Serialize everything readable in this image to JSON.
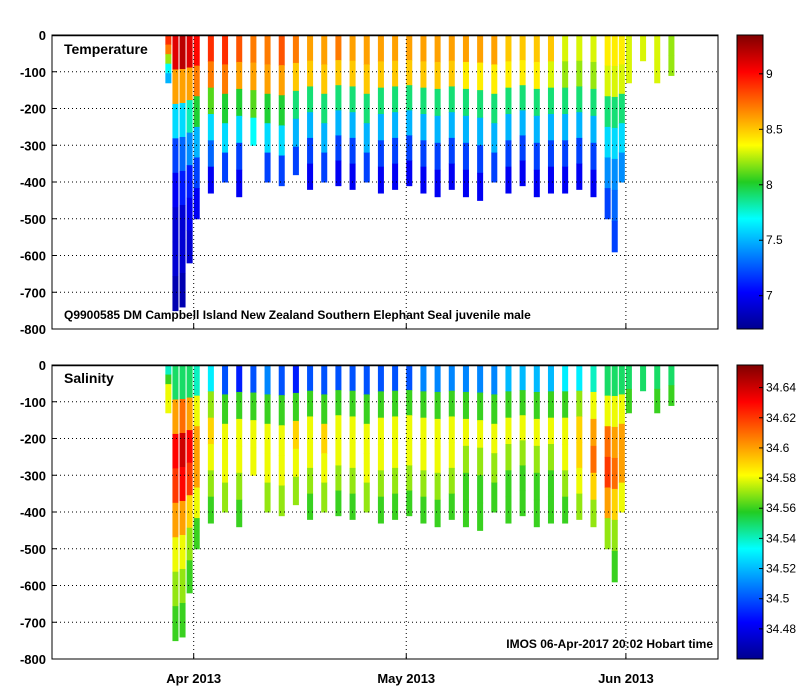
{
  "chart_data": [
    {
      "type": "heatmap",
      "title": "Temperature",
      "caption": "Q9900585 DM Campbell Island New Zealand Southern Elephant Seal juvenile male",
      "ylim": [
        -800,
        0
      ],
      "y_ticks": [
        0,
        -100,
        -200,
        -300,
        -400,
        -500,
        -600,
        -700,
        -800
      ],
      "x_ticks": [
        "Apr 2013",
        "May 2013",
        "Jun 2013"
      ],
      "colorbar": {
        "range": [
          6.7,
          9.35
        ],
        "ticks": [
          7,
          7.5,
          8,
          8.5,
          9
        ]
      },
      "profiles": [
        {
          "date": "2013-03-28",
          "bottom": -130,
          "values": [
            8.9,
            8.7,
            8.2,
            7.7,
            7.5
          ]
        },
        {
          "date": "2013-03-29",
          "bottom": -750,
          "values": [
            9.1,
            8.6,
            7.6,
            7.2,
            7.0,
            6.9,
            6.9,
            6.8
          ]
        },
        {
          "date": "2013-03-30",
          "bottom": -740,
          "values": [
            9.2,
            8.6,
            7.6,
            7.3,
            7.1,
            6.9,
            6.9,
            6.8
          ]
        },
        {
          "date": "2013-03-31",
          "bottom": -620,
          "values": [
            9.1,
            8.6,
            7.8,
            7.4,
            7.1,
            7.0,
            6.9
          ]
        },
        {
          "date": "2013-04-01",
          "bottom": -500,
          "values": [
            9.0,
            8.7,
            8.0,
            7.5,
            7.2,
            7.0
          ]
        },
        {
          "date": "2013-04-03",
          "bottom": -430,
          "values": [
            8.9,
            8.7,
            8.1,
            7.6,
            7.3,
            7.0
          ]
        },
        {
          "date": "2013-04-05",
          "bottom": -400,
          "values": [
            8.9,
            8.7,
            8.0,
            7.6,
            7.2
          ]
        },
        {
          "date": "2013-04-07",
          "bottom": -440,
          "values": [
            8.8,
            8.6,
            8.0,
            7.6,
            7.2,
            7.0
          ]
        },
        {
          "date": "2013-04-09",
          "bottom": -300,
          "values": [
            8.7,
            8.6,
            8.1,
            7.7
          ]
        },
        {
          "date": "2013-04-11",
          "bottom": -400,
          "values": [
            8.7,
            8.6,
            8.0,
            7.6,
            7.2
          ]
        },
        {
          "date": "2013-04-13",
          "bottom": -410,
          "values": [
            8.8,
            8.6,
            8.0,
            7.6,
            7.2
          ]
        },
        {
          "date": "2013-04-15",
          "bottom": -380,
          "values": [
            8.7,
            8.5,
            7.9,
            7.5,
            7.2
          ]
        },
        {
          "date": "2013-04-17",
          "bottom": -420,
          "values": [
            8.6,
            8.5,
            7.9,
            7.5,
            7.2,
            7.0
          ]
        },
        {
          "date": "2013-04-19",
          "bottom": -400,
          "values": [
            8.6,
            8.5,
            7.9,
            7.5,
            7.2
          ]
        },
        {
          "date": "2013-04-21",
          "bottom": -410,
          "values": [
            8.7,
            8.5,
            7.9,
            7.5,
            7.2,
            7.0
          ]
        },
        {
          "date": "2013-04-23",
          "bottom": -420,
          "values": [
            8.6,
            8.5,
            7.9,
            7.5,
            7.2,
            7.0
          ]
        },
        {
          "date": "2013-04-25",
          "bottom": -400,
          "values": [
            8.6,
            8.5,
            7.9,
            7.5,
            7.2
          ]
        },
        {
          "date": "2013-04-27",
          "bottom": -430,
          "values": [
            8.6,
            8.5,
            7.9,
            7.5,
            7.2,
            7.0
          ]
        },
        {
          "date": "2013-04-29",
          "bottom": -420,
          "values": [
            8.6,
            8.5,
            7.9,
            7.5,
            7.2,
            7.0
          ]
        },
        {
          "date": "2013-05-01",
          "bottom": -410,
          "values": [
            8.6,
            8.5,
            7.9,
            7.5,
            7.2,
            7.0
          ]
        },
        {
          "date": "2013-05-03",
          "bottom": -430,
          "values": [
            8.6,
            8.5,
            7.9,
            7.5,
            7.2,
            7.0
          ]
        },
        {
          "date": "2013-05-05",
          "bottom": -440,
          "values": [
            8.6,
            8.5,
            7.9,
            7.5,
            7.2,
            7.0
          ]
        },
        {
          "date": "2013-05-07",
          "bottom": -420,
          "values": [
            8.6,
            8.5,
            7.9,
            7.5,
            7.2,
            7.0
          ]
        },
        {
          "date": "2013-05-09",
          "bottom": -440,
          "values": [
            8.6,
            8.4,
            7.9,
            7.5,
            7.2,
            7.0
          ]
        },
        {
          "date": "2013-05-11",
          "bottom": -450,
          "values": [
            8.6,
            8.4,
            7.9,
            7.5,
            7.2,
            7.0
          ]
        },
        {
          "date": "2013-05-13",
          "bottom": -400,
          "values": [
            8.6,
            8.4,
            7.9,
            7.5,
            7.2
          ]
        },
        {
          "date": "2013-05-15",
          "bottom": -430,
          "values": [
            8.5,
            8.4,
            7.9,
            7.5,
            7.2,
            7.0
          ]
        },
        {
          "date": "2013-05-17",
          "bottom": -410,
          "values": [
            8.5,
            8.4,
            7.9,
            7.5,
            7.2,
            7.0
          ]
        },
        {
          "date": "2013-05-19",
          "bottom": -440,
          "values": [
            8.5,
            8.4,
            7.9,
            7.5,
            7.2,
            7.0
          ]
        },
        {
          "date": "2013-05-21",
          "bottom": -430,
          "values": [
            8.5,
            8.3,
            7.9,
            7.5,
            7.2,
            7.0
          ]
        },
        {
          "date": "2013-05-23",
          "bottom": -430,
          "values": [
            8.3,
            8.2,
            7.9,
            7.5,
            7.2,
            7.0
          ]
        },
        {
          "date": "2013-05-25",
          "bottom": -420,
          "values": [
            8.3,
            8.2,
            7.9,
            7.5,
            7.2,
            7.0
          ]
        },
        {
          "date": "2013-05-27",
          "bottom": -440,
          "values": [
            8.3,
            8.2,
            7.9,
            7.5,
            7.2,
            7.0
          ]
        },
        {
          "date": "2013-05-29",
          "bottom": -500,
          "values": [
            8.4,
            8.3,
            7.9,
            7.6,
            7.4,
            7.2
          ]
        },
        {
          "date": "2013-05-30",
          "bottom": -590,
          "values": [
            8.4,
            8.3,
            7.9,
            7.6,
            7.4,
            7.3,
            7.2
          ]
        },
        {
          "date": "2013-05-31",
          "bottom": -400,
          "values": [
            8.4,
            8.3,
            7.9,
            7.6,
            7.4
          ]
        },
        {
          "date": "2013-06-01",
          "bottom": -130,
          "values": [
            8.3,
            8.3
          ]
        },
        {
          "date": "2013-06-03",
          "bottom": -70,
          "values": [
            8.3
          ]
        },
        {
          "date": "2013-06-05",
          "bottom": -130,
          "values": [
            8.3,
            8.3
          ]
        },
        {
          "date": "2013-06-07",
          "bottom": -110,
          "values": [
            8.2,
            8.2
          ]
        }
      ]
    },
    {
      "type": "heatmap",
      "title": "Salinity",
      "caption": "IMOS 06-Apr-2017 20:02 Hobart time",
      "ylim": [
        -800,
        0
      ],
      "y_ticks": [
        0,
        -100,
        -200,
        -300,
        -400,
        -500,
        -600,
        -700,
        -800
      ],
      "x_ticks": [
        "Apr 2013",
        "May 2013",
        "Jun 2013"
      ],
      "colorbar": {
        "range": [
          34.46,
          34.655
        ],
        "ticks": [
          34.48,
          34.5,
          34.52,
          34.54,
          34.56,
          34.58,
          34.6,
          34.62,
          34.64
        ]
      },
      "profiles": [
        {
          "date": "2013-03-28",
          "bottom": -130,
          "values": [
            34.54,
            34.56,
            34.58,
            34.58,
            34.58
          ]
        },
        {
          "date": "2013-03-29",
          "bottom": -750,
          "values": [
            34.55,
            34.6,
            34.63,
            34.62,
            34.6,
            34.58,
            34.57,
            34.56
          ]
        },
        {
          "date": "2013-03-30",
          "bottom": -740,
          "values": [
            34.55,
            34.61,
            34.64,
            34.63,
            34.6,
            34.58,
            34.57,
            34.56
          ]
        },
        {
          "date": "2013-03-31",
          "bottom": -620,
          "values": [
            34.55,
            34.6,
            34.63,
            34.62,
            34.59,
            34.57,
            34.56
          ]
        },
        {
          "date": "2013-04-01",
          "bottom": -500,
          "values": [
            34.54,
            34.58,
            34.6,
            34.6,
            34.58,
            34.56
          ]
        },
        {
          "date": "2013-04-03",
          "bottom": -430,
          "values": [
            34.53,
            34.57,
            34.59,
            34.58,
            34.57,
            34.56
          ]
        },
        {
          "date": "2013-04-05",
          "bottom": -400,
          "values": [
            34.5,
            34.56,
            34.58,
            34.58,
            34.57
          ]
        },
        {
          "date": "2013-04-07",
          "bottom": -440,
          "values": [
            34.49,
            34.56,
            34.58,
            34.58,
            34.57,
            34.56
          ]
        },
        {
          "date": "2013-04-09",
          "bottom": -300,
          "values": [
            34.5,
            34.56,
            34.58,
            34.58
          ]
        },
        {
          "date": "2013-04-11",
          "bottom": -400,
          "values": [
            34.51,
            34.56,
            34.58,
            34.58,
            34.57
          ]
        },
        {
          "date": "2013-04-13",
          "bottom": -410,
          "values": [
            34.5,
            34.56,
            34.58,
            34.58,
            34.57
          ]
        },
        {
          "date": "2013-04-15",
          "bottom": -380,
          "values": [
            34.49,
            34.56,
            34.59,
            34.58,
            34.57
          ]
        },
        {
          "date": "2013-04-17",
          "bottom": -420,
          "values": [
            34.5,
            34.56,
            34.58,
            34.58,
            34.57,
            34.56
          ]
        },
        {
          "date": "2013-04-19",
          "bottom": -400,
          "values": [
            34.5,
            34.56,
            34.59,
            34.58,
            34.57
          ]
        },
        {
          "date": "2013-04-21",
          "bottom": -410,
          "values": [
            34.5,
            34.56,
            34.58,
            34.58,
            34.57,
            34.56
          ]
        },
        {
          "date": "2013-04-23",
          "bottom": -420,
          "values": [
            34.5,
            34.56,
            34.58,
            34.58,
            34.57,
            34.56
          ]
        },
        {
          "date": "2013-04-25",
          "bottom": -400,
          "values": [
            34.5,
            34.56,
            34.58,
            34.58,
            34.57
          ]
        },
        {
          "date": "2013-04-27",
          "bottom": -430,
          "values": [
            34.5,
            34.56,
            34.58,
            34.58,
            34.57,
            34.56
          ]
        },
        {
          "date": "2013-04-29",
          "bottom": -420,
          "values": [
            34.5,
            34.56,
            34.58,
            34.58,
            34.57,
            34.56
          ]
        },
        {
          "date": "2013-05-01",
          "bottom": -410,
          "values": [
            34.5,
            34.56,
            34.58,
            34.58,
            34.57,
            34.56
          ]
        },
        {
          "date": "2013-05-03",
          "bottom": -430,
          "values": [
            34.51,
            34.56,
            34.58,
            34.58,
            34.57,
            34.56
          ]
        },
        {
          "date": "2013-05-05",
          "bottom": -440,
          "values": [
            34.51,
            34.56,
            34.58,
            34.58,
            34.57,
            34.56
          ]
        },
        {
          "date": "2013-05-07",
          "bottom": -420,
          "values": [
            34.51,
            34.56,
            34.58,
            34.58,
            34.57,
            34.56
          ]
        },
        {
          "date": "2013-05-09",
          "bottom": -440,
          "values": [
            34.51,
            34.56,
            34.58,
            34.57,
            34.56,
            34.56
          ]
        },
        {
          "date": "2013-05-11",
          "bottom": -450,
          "values": [
            34.51,
            34.56,
            34.58,
            34.57,
            34.56,
            34.56
          ]
        },
        {
          "date": "2013-05-13",
          "bottom": -400,
          "values": [
            34.51,
            34.56,
            34.58,
            34.57,
            34.56
          ]
        },
        {
          "date": "2013-05-15",
          "bottom": -430,
          "values": [
            34.52,
            34.56,
            34.58,
            34.57,
            34.56,
            34.56
          ]
        },
        {
          "date": "2013-05-17",
          "bottom": -410,
          "values": [
            34.52,
            34.56,
            34.58,
            34.57,
            34.56,
            34.56
          ]
        },
        {
          "date": "2013-05-19",
          "bottom": -440,
          "values": [
            34.52,
            34.56,
            34.58,
            34.57,
            34.56,
            34.56
          ]
        },
        {
          "date": "2013-05-21",
          "bottom": -430,
          "values": [
            34.52,
            34.56,
            34.58,
            34.57,
            34.56,
            34.56
          ]
        },
        {
          "date": "2013-05-23",
          "bottom": -430,
          "values": [
            34.53,
            34.56,
            34.58,
            34.58,
            34.57,
            34.56
          ]
        },
        {
          "date": "2013-05-25",
          "bottom": -420,
          "values": [
            34.53,
            34.57,
            34.59,
            34.59,
            34.58,
            34.57
          ]
        },
        {
          "date": "2013-05-27",
          "bottom": -440,
          "values": [
            34.54,
            34.58,
            34.6,
            34.61,
            34.59,
            34.57
          ]
        },
        {
          "date": "2013-05-29",
          "bottom": -500,
          "values": [
            34.55,
            34.58,
            34.61,
            34.62,
            34.6,
            34.57
          ]
        },
        {
          "date": "2013-05-30",
          "bottom": -590,
          "values": [
            34.55,
            34.58,
            34.6,
            34.61,
            34.59,
            34.57,
            34.56
          ]
        },
        {
          "date": "2013-05-31",
          "bottom": -400,
          "values": [
            34.55,
            34.58,
            34.6,
            34.6,
            34.58
          ]
        },
        {
          "date": "2013-06-01",
          "bottom": -130,
          "values": [
            34.55,
            34.56
          ]
        },
        {
          "date": "2013-06-03",
          "bottom": -70,
          "values": [
            34.55
          ]
        },
        {
          "date": "2013-06-05",
          "bottom": -130,
          "values": [
            34.55,
            34.56
          ]
        },
        {
          "date": "2013-06-07",
          "bottom": -110,
          "values": [
            34.55,
            34.56
          ]
        }
      ]
    }
  ]
}
